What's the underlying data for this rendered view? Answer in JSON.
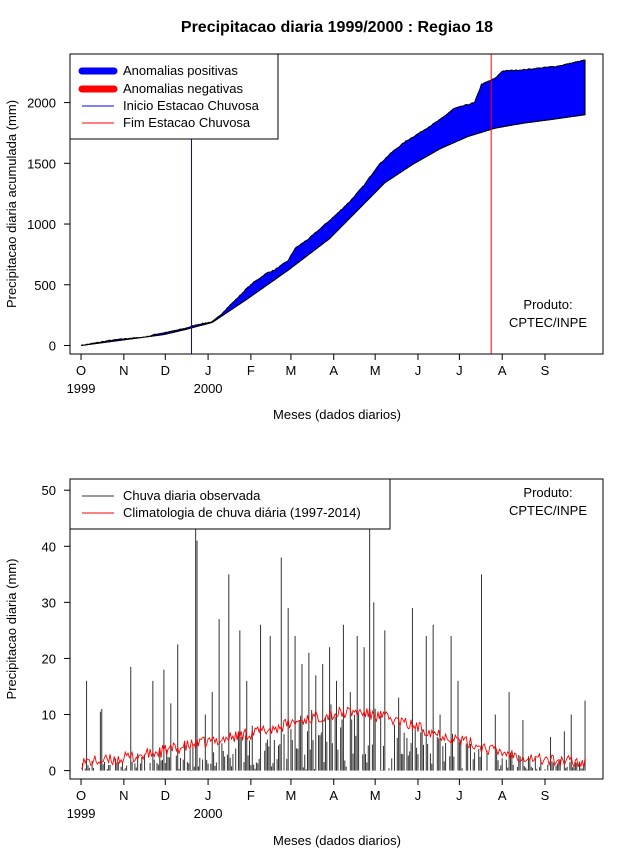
{
  "chart_data": [
    {
      "type": "area",
      "title": "Precipitacao diaria 1999/2000 : Regiao 18",
      "xlabel": "Meses (dados diarios)",
      "ylabel": "Precipitacao diaria acumulada (mm)",
      "ylim": [
        -70,
        2400
      ],
      "yticks": [
        0,
        500,
        1000,
        1500,
        2000
      ],
      "x_unit": "days since 1999-10-01",
      "xlim": [
        -8,
        378
      ],
      "month_ticks": [
        {
          "day": 0,
          "label": "O"
        },
        {
          "day": 31,
          "label": "N"
        },
        {
          "day": 61,
          "label": "D"
        },
        {
          "day": 92,
          "label": "J"
        },
        {
          "day": 123,
          "label": "F"
        },
        {
          "day": 152,
          "label": "M"
        },
        {
          "day": 183,
          "label": "A"
        },
        {
          "day": 213,
          "label": "M"
        },
        {
          "day": 244,
          "label": "J"
        },
        {
          "day": 274,
          "label": "J"
        },
        {
          "day": 305,
          "label": "A"
        },
        {
          "day": 336,
          "label": "S"
        }
      ],
      "year_labels": [
        {
          "day": 0,
          "label": "1999"
        },
        {
          "day": 92,
          "label": "2000"
        }
      ],
      "grid": false,
      "legend_position": "top-left",
      "legend": [
        {
          "label": "Anomalias positivas",
          "color": "#0000ff",
          "style": "thick"
        },
        {
          "label": "Anomalias negativas",
          "color": "#ff0000",
          "style": "thick"
        },
        {
          "label": "Inicio Estacao Chuvosa",
          "color": "#0000ff",
          "style": "line"
        },
        {
          "label": "Fim Estacao Chuvosa",
          "color": "#ff0000",
          "style": "line"
        }
      ],
      "observed_accumulated": {
        "x": [
          0,
          20,
          35,
          45,
          55,
          65,
          75,
          85,
          95,
          100,
          105,
          115,
          120,
          125,
          135,
          140,
          150,
          155,
          165,
          175,
          185,
          195,
          205,
          215,
          225,
          235,
          245,
          260,
          270,
          285,
          290,
          300,
          305,
          320,
          345,
          365
        ],
        "y": [
          0,
          40,
          60,
          65,
          95,
          115,
          140,
          175,
          195,
          240,
          300,
          410,
          470,
          520,
          600,
          620,
          700,
          800,
          880,
          980,
          1080,
          1190,
          1320,
          1480,
          1590,
          1680,
          1750,
          1860,
          1950,
          2000,
          2150,
          2200,
          2260,
          2270,
          2300,
          2350
        ]
      },
      "climatology_accumulated": {
        "x": [
          0,
          30,
          60,
          75,
          90,
          95,
          120,
          150,
          180,
          200,
          220,
          240,
          260,
          280,
          300,
          320,
          340,
          365
        ],
        "y": [
          0,
          45,
          90,
          130,
          175,
          190,
          380,
          620,
          880,
          1110,
          1340,
          1490,
          1620,
          1720,
          1790,
          1830,
          1860,
          1900
        ]
      },
      "inicio_estacao_chuvosa_day": 80,
      "fim_estacao_chuvosa_day": 297,
      "annotation": [
        "Produto:",
        "CPTEC/INPE"
      ]
    },
    {
      "type": "bar",
      "xlabel": "Meses (dados diarios)",
      "ylabel": "Precipitacao diaria (mm)",
      "ylim": [
        -1.5,
        52
      ],
      "yticks": [
        0,
        10,
        20,
        30,
        40,
        50
      ],
      "x_unit": "days since 1999-10-01",
      "xlim": [
        -8,
        378
      ],
      "month_ticks": [
        {
          "day": 0,
          "label": "O"
        },
        {
          "day": 31,
          "label": "N"
        },
        {
          "day": 61,
          "label": "D"
        },
        {
          "day": 92,
          "label": "J"
        },
        {
          "day": 123,
          "label": "F"
        },
        {
          "day": 152,
          "label": "M"
        },
        {
          "day": 183,
          "label": "A"
        },
        {
          "day": 213,
          "label": "M"
        },
        {
          "day": 244,
          "label": "J"
        },
        {
          "day": 274,
          "label": "J"
        },
        {
          "day": 305,
          "label": "A"
        },
        {
          "day": 336,
          "label": "S"
        }
      ],
      "year_labels": [
        {
          "day": 0,
          "label": "1999"
        },
        {
          "day": 92,
          "label": "2000"
        }
      ],
      "grid": false,
      "legend_position": "top-left",
      "legend": [
        {
          "label": "Chuva diaria observada",
          "color": "#333333",
          "style": "line"
        },
        {
          "label": "Climatologia de chuva diária (1997-2014)",
          "color": "#ff0000",
          "style": "line"
        }
      ],
      "annotation": [
        "Produto:",
        "CPTEC/INPE"
      ],
      "observed_daily_peaks": {
        "x": [
          4,
          14,
          15,
          36,
          52,
          60,
          65,
          70,
          83,
          84,
          90,
          95,
          100,
          107,
          115,
          120,
          130,
          137,
          145,
          150,
          155,
          160,
          165,
          170,
          175,
          180,
          185,
          190,
          195,
          200,
          205,
          209,
          212,
          220,
          230,
          240,
          250,
          255,
          260,
          268,
          273,
          290,
          300,
          310,
          320,
          340,
          350,
          355,
          365
        ],
        "y": [
          16,
          10.5,
          11,
          18.5,
          16,
          18,
          12,
          22.5,
          44,
          41,
          10,
          14,
          27,
          35,
          25,
          16,
          26,
          24,
          38,
          29,
          24,
          19,
          21,
          17,
          19,
          22,
          16,
          26,
          14,
          24,
          22,
          44,
          30,
          25,
          13,
          29,
          24,
          26,
          10,
          24,
          16,
          35,
          10,
          14,
          9,
          6,
          7,
          10,
          12.5
        ]
      },
      "climatology_daily": {
        "x": [
          0,
          20,
          40,
          60,
          80,
          100,
          120,
          140,
          160,
          180,
          200,
          220,
          240,
          260,
          280,
          300,
          320,
          340,
          365
        ],
        "y": [
          1.5,
          1.8,
          2.5,
          3.5,
          4.5,
          5.5,
          6.5,
          7.5,
          9,
          10,
          10.5,
          9.5,
          8,
          6.5,
          5,
          3.5,
          2.5,
          1.8,
          1.5
        ]
      }
    }
  ]
}
